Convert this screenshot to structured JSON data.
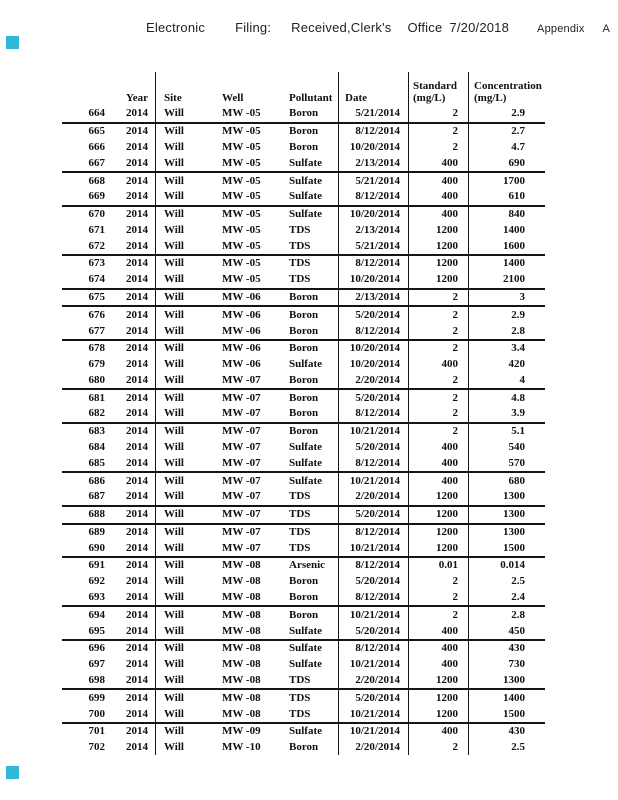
{
  "colors": {
    "marker": "#2fb8d9",
    "text": "#111111",
    "line": "#151515"
  },
  "stamp": {
    "electronic": "Electronic",
    "filing": "Filing:",
    "received": "Received,Clerk's",
    "office": "Office",
    "date": "7/20/2018",
    "appendix": "Appendix",
    "appendix_letter": "A"
  },
  "table": {
    "headers": {
      "year": "Year",
      "site": "Site",
      "well": "Well",
      "pollutant": "Pollutant",
      "date": "Date",
      "standard_1": "Standard",
      "standard_2": "(mg/L)",
      "concentration_1": "Concentration",
      "concentration_2": "(mg/L)"
    },
    "rows": [
      {
        "num": "664",
        "year": "2014",
        "site": "Will",
        "well": "MW -05",
        "pollutant": "Boron",
        "date": "5/21/2014",
        "standard": "2",
        "concentration": "2.9",
        "rule": true
      },
      {
        "num": "665",
        "year": "2014",
        "site": "Will",
        "well": "MW -05",
        "pollutant": "Boron",
        "date": "8/12/2014",
        "standard": "2",
        "concentration": "2.7",
        "rule": false
      },
      {
        "num": "666",
        "year": "2014",
        "site": "Will",
        "well": "MW -05",
        "pollutant": "Boron",
        "date": "10/20/2014",
        "standard": "2",
        "concentration": "4.7",
        "rule": false
      },
      {
        "num": "667",
        "year": "2014",
        "site": "Will",
        "well": "MW -05",
        "pollutant": "Sulfate",
        "date": "2/13/2014",
        "standard": "400",
        "concentration": "690",
        "rule": true
      },
      {
        "num": "668",
        "year": "2014",
        "site": "Will",
        "well": "MW -05",
        "pollutant": "Sulfate",
        "date": "5/21/2014",
        "standard": "400",
        "concentration": "1700",
        "rule": false
      },
      {
        "num": "669",
        "year": "2014",
        "site": "Will",
        "well": "MW -05",
        "pollutant": "Sulfate",
        "date": "8/12/2014",
        "standard": "400",
        "concentration": "610",
        "rule": true
      },
      {
        "num": "670",
        "year": "2014",
        "site": "Will",
        "well": "MW -05",
        "pollutant": "Sulfate",
        "date": "10/20/2014",
        "standard": "400",
        "concentration": "840",
        "rule": false
      },
      {
        "num": "671",
        "year": "2014",
        "site": "Will",
        "well": "MW -05",
        "pollutant": "TDS",
        "date": "2/13/2014",
        "standard": "1200",
        "concentration": "1400",
        "rule": false
      },
      {
        "num": "672",
        "year": "2014",
        "site": "Will",
        "well": "MW -05",
        "pollutant": "TDS",
        "date": "5/21/2014",
        "standard": "1200",
        "concentration": "1600",
        "rule": true
      },
      {
        "num": "673",
        "year": "2014",
        "site": "Will",
        "well": "MW -05",
        "pollutant": "TDS",
        "date": "8/12/2014",
        "standard": "1200",
        "concentration": "1400",
        "rule": false
      },
      {
        "num": "674",
        "year": "2014",
        "site": "Will",
        "well": "MW -05",
        "pollutant": "TDS",
        "date": "10/20/2014",
        "standard": "1200",
        "concentration": "2100",
        "rule": true
      },
      {
        "num": "675",
        "year": "2014",
        "site": "Will",
        "well": "MW -06",
        "pollutant": "Boron",
        "date": "2/13/2014",
        "standard": "2",
        "concentration": "3",
        "rule": true
      },
      {
        "num": "676",
        "year": "2014",
        "site": "Will",
        "well": "MW -06",
        "pollutant": "Boron",
        "date": "5/20/2014",
        "standard": "2",
        "concentration": "2.9",
        "rule": false
      },
      {
        "num": "677",
        "year": "2014",
        "site": "Will",
        "well": "MW -06",
        "pollutant": "Boron",
        "date": "8/12/2014",
        "standard": "2",
        "concentration": "2.8",
        "rule": true
      },
      {
        "num": "678",
        "year": "2014",
        "site": "Will",
        "well": "MW -06",
        "pollutant": "Boron",
        "date": "10/20/2014",
        "standard": "2",
        "concentration": "3.4",
        "rule": false
      },
      {
        "num": "679",
        "year": "2014",
        "site": "Will",
        "well": "MW -06",
        "pollutant": "Sulfate",
        "date": "10/20/2014",
        "standard": "400",
        "concentration": "420",
        "rule": false
      },
      {
        "num": "680",
        "year": "2014",
        "site": "Will",
        "well": "MW -07",
        "pollutant": "Boron",
        "date": "2/20/2014",
        "standard": "2",
        "concentration": "4",
        "rule": true
      },
      {
        "num": "681",
        "year": "2014",
        "site": "Will",
        "well": "MW -07",
        "pollutant": "Boron",
        "date": "5/20/2014",
        "standard": "2",
        "concentration": "4.8",
        "rule": false
      },
      {
        "num": "682",
        "year": "2014",
        "site": "Will",
        "well": "MW -07",
        "pollutant": "Boron",
        "date": "8/12/2014",
        "standard": "2",
        "concentration": "3.9",
        "rule": true
      },
      {
        "num": "683",
        "year": "2014",
        "site": "Will",
        "well": "MW -07",
        "pollutant": "Boron",
        "date": "10/21/2014",
        "standard": "2",
        "concentration": "5.1",
        "rule": false
      },
      {
        "num": "684",
        "year": "2014",
        "site": "Will",
        "well": "MW -07",
        "pollutant": "Sulfate",
        "date": "5/20/2014",
        "standard": "400",
        "concentration": "540",
        "rule": false
      },
      {
        "num": "685",
        "year": "2014",
        "site": "Will",
        "well": "MW -07",
        "pollutant": "Sulfate",
        "date": "8/12/2014",
        "standard": "400",
        "concentration": "570",
        "rule": true
      },
      {
        "num": "686",
        "year": "2014",
        "site": "Will",
        "well": "MW -07",
        "pollutant": "Sulfate",
        "date": "10/21/2014",
        "standard": "400",
        "concentration": "680",
        "rule": false
      },
      {
        "num": "687",
        "year": "2014",
        "site": "Will",
        "well": "MW -07",
        "pollutant": "TDS",
        "date": "2/20/2014",
        "standard": "1200",
        "concentration": "1300",
        "rule": true
      },
      {
        "num": "688",
        "year": "2014",
        "site": "Will",
        "well": "MW -07",
        "pollutant": "TDS",
        "date": "5/20/2014",
        "standard": "1200",
        "concentration": "1300",
        "rule": true
      },
      {
        "num": "689",
        "year": "2014",
        "site": "Will",
        "well": "MW -07",
        "pollutant": "TDS",
        "date": "8/12/2014",
        "standard": "1200",
        "concentration": "1300",
        "rule": false
      },
      {
        "num": "690",
        "year": "2014",
        "site": "Will",
        "well": "MW -07",
        "pollutant": "TDS",
        "date": "10/21/2014",
        "standard": "1200",
        "concentration": "1500",
        "rule": true
      },
      {
        "num": "691",
        "year": "2014",
        "site": "Will",
        "well": "MW -08",
        "pollutant": "Arsenic",
        "date": "8/12/2014",
        "standard": "0.01",
        "concentration": "0.014",
        "rule": false
      },
      {
        "num": "692",
        "year": "2014",
        "site": "Will",
        "well": "MW -08",
        "pollutant": "Boron",
        "date": "5/20/2014",
        "standard": "2",
        "concentration": "2.5",
        "rule": false
      },
      {
        "num": "693",
        "year": "2014",
        "site": "Will",
        "well": "MW -08",
        "pollutant": "Boron",
        "date": "8/12/2014",
        "standard": "2",
        "concentration": "2.4",
        "rule": true
      },
      {
        "num": "694",
        "year": "2014",
        "site": "Will",
        "well": "MW -08",
        "pollutant": "Boron",
        "date": "10/21/2014",
        "standard": "2",
        "concentration": "2.8",
        "rule": false
      },
      {
        "num": "695",
        "year": "2014",
        "site": "Will",
        "well": "MW -08",
        "pollutant": "Sulfate",
        "date": "5/20/2014",
        "standard": "400",
        "concentration": "450",
        "rule": true
      },
      {
        "num": "696",
        "year": "2014",
        "site": "Will",
        "well": "MW -08",
        "pollutant": "Sulfate",
        "date": "8/12/2014",
        "standard": "400",
        "concentration": "430",
        "rule": false
      },
      {
        "num": "697",
        "year": "2014",
        "site": "Will",
        "well": "MW -08",
        "pollutant": "Sulfate",
        "date": "10/21/2014",
        "standard": "400",
        "concentration": "730",
        "rule": false
      },
      {
        "num": "698",
        "year": "2014",
        "site": "Will",
        "well": "MW -08",
        "pollutant": "TDS",
        "date": "2/20/2014",
        "standard": "1200",
        "concentration": "1300",
        "rule": true
      },
      {
        "num": "699",
        "year": "2014",
        "site": "Will",
        "well": "MW -08",
        "pollutant": "TDS",
        "date": "5/20/2014",
        "standard": "1200",
        "concentration": "1400",
        "rule": false
      },
      {
        "num": "700",
        "year": "2014",
        "site": "Will",
        "well": "MW -08",
        "pollutant": "TDS",
        "date": "10/21/2014",
        "standard": "1200",
        "concentration": "1500",
        "rule": true
      },
      {
        "num": "701",
        "year": "2014",
        "site": "Will",
        "well": "MW -09",
        "pollutant": "Sulfate",
        "date": "10/21/2014",
        "standard": "400",
        "concentration": "430",
        "rule": false
      },
      {
        "num": "702",
        "year": "2014",
        "site": "Will",
        "well": "MW -10",
        "pollutant": "Boron",
        "date": "2/20/2014",
        "standard": "2",
        "concentration": "2.5",
        "rule": false
      }
    ]
  }
}
